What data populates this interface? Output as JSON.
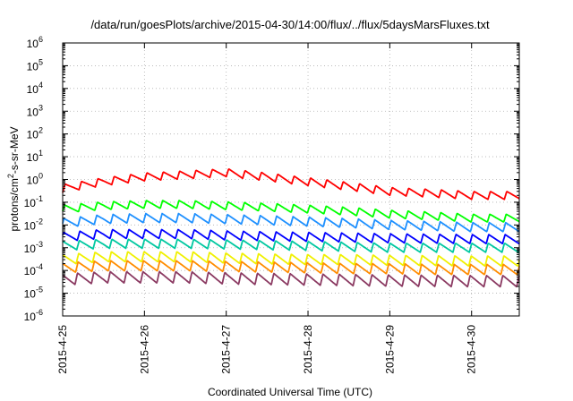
{
  "chart_data": {
    "type": "line",
    "title": "/data/run/goesPlots/archive/2015-04-30/14:00/flux/../flux/5daysMarsFluxes.txt",
    "xlabel": "Coordinated Universal Time (UTC)",
    "ylabel": "protons/cm²-s-sr-MeV",
    "ylabel_parts": {
      "base": "protons/cm",
      "sup": "2",
      "rest": "-s-sr-MeV"
    },
    "yscale": "log",
    "ylim": [
      1e-06,
      1000000.0
    ],
    "y_tick_labels": [
      {
        "value": 1e-06,
        "base": "10",
        "exp": "-6"
      },
      {
        "value": 1e-05,
        "base": "10",
        "exp": "-5"
      },
      {
        "value": 0.0001,
        "base": "10",
        "exp": "-4"
      },
      {
        "value": 0.001,
        "base": "10",
        "exp": "-3"
      },
      {
        "value": 0.01,
        "base": "10",
        "exp": "-2"
      },
      {
        "value": 0.1,
        "base": "10",
        "exp": "-1"
      },
      {
        "value": 1,
        "base": "10",
        "exp": "0"
      },
      {
        "value": 10.0,
        "base": "10",
        "exp": "1"
      },
      {
        "value": 100.0,
        "base": "10",
        "exp": "2"
      },
      {
        "value": 1000.0,
        "base": "10",
        "exp": "3"
      },
      {
        "value": 10000.0,
        "base": "10",
        "exp": "4"
      },
      {
        "value": 100000.0,
        "base": "10",
        "exp": "5"
      },
      {
        "value": 1000000.0,
        "base": "10",
        "exp": "6"
      }
    ],
    "xlim": [
      "2015-04-25T00:00",
      "2015-04-30T14:00"
    ],
    "x_ticks": [
      {
        "value": "2015-04-25T00:00",
        "label": "2015-4-25"
      },
      {
        "value": "2015-04-26T00:00",
        "label": "2015-4-26"
      },
      {
        "value": "2015-04-27T00:00",
        "label": "2015-4-27"
      },
      {
        "value": "2015-04-28T00:00",
        "label": "2015-4-28"
      },
      {
        "value": "2015-04-29T00:00",
        "label": "2015-4-29"
      },
      {
        "value": "2015-04-30T00:00",
        "label": "2015-4-30"
      }
    ],
    "grid": true,
    "series": [
      {
        "color": "#ff0000",
        "x": [
          "2015-04-25T00:00",
          "2015-04-25T12:00",
          "2015-04-26T00:00",
          "2015-04-26T12:00",
          "2015-04-27T00:00",
          "2015-04-27T12:00",
          "2015-04-28T00:00",
          "2015-04-28T12:00",
          "2015-04-29T00:00",
          "2015-04-29T12:00",
          "2015-04-30T00:00",
          "2015-04-30T14:00"
        ],
        "values": [
          0.4,
          0.8,
          1.3,
          1.6,
          2.0,
          1.3,
          0.8,
          0.5,
          0.3,
          0.25,
          0.2,
          0.2
        ],
        "oscillation_amplitude": 0.35
      },
      {
        "color": "#00ff00",
        "x": [
          "2015-04-25T00:00",
          "2015-04-25T12:00",
          "2015-04-26T00:00",
          "2015-04-26T12:00",
          "2015-04-27T00:00",
          "2015-04-27T12:00",
          "2015-04-28T00:00",
          "2015-04-28T12:00",
          "2015-04-29T00:00",
          "2015-04-29T12:00",
          "2015-04-30T00:00",
          "2015-04-30T14:00"
        ],
        "values": [
          0.05,
          0.07,
          0.08,
          0.08,
          0.07,
          0.06,
          0.05,
          0.04,
          0.03,
          0.025,
          0.02,
          0.02
        ],
        "oscillation_amplitude": 0.35
      },
      {
        "color": "#1e90ff",
        "x": [
          "2015-04-25T00:00",
          "2015-04-25T12:00",
          "2015-04-26T00:00",
          "2015-04-26T12:00",
          "2015-04-27T00:00",
          "2015-04-27T12:00",
          "2015-04-28T00:00",
          "2015-04-28T12:00",
          "2015-04-29T00:00",
          "2015-04-29T12:00",
          "2015-04-30T00:00",
          "2015-04-30T14:00"
        ],
        "values": [
          0.012,
          0.018,
          0.02,
          0.02,
          0.018,
          0.016,
          0.014,
          0.012,
          0.01,
          0.009,
          0.008,
          0.008
        ],
        "oscillation_amplitude": 0.4
      },
      {
        "color": "#0000ff",
        "x": [
          "2015-04-25T00:00",
          "2015-04-25T12:00",
          "2015-04-26T00:00",
          "2015-04-26T12:00",
          "2015-04-27T00:00",
          "2015-04-27T12:00",
          "2015-04-28T00:00",
          "2015-04-28T12:00",
          "2015-04-29T00:00",
          "2015-04-29T12:00",
          "2015-04-30T00:00",
          "2015-04-30T14:00"
        ],
        "values": [
          0.003,
          0.004,
          0.004,
          0.004,
          0.0035,
          0.0032,
          0.003,
          0.0028,
          0.0026,
          0.0025,
          0.0024,
          0.0024
        ],
        "oscillation_amplitude": 0.4
      },
      {
        "color": "#00c8a0",
        "x": [
          "2015-04-25T00:00",
          "2015-04-25T12:00",
          "2015-04-26T00:00",
          "2015-04-26T12:00",
          "2015-04-27T00:00",
          "2015-04-27T12:00",
          "2015-04-28T00:00",
          "2015-04-28T12:00",
          "2015-04-29T00:00",
          "2015-04-29T12:00",
          "2015-04-30T00:00",
          "2015-04-30T14:00"
        ],
        "values": [
          0.0012,
          0.0015,
          0.0015,
          0.0015,
          0.0014,
          0.0013,
          0.0012,
          0.0011,
          0.001,
          0.001,
          0.001,
          0.001
        ],
        "oscillation_amplitude": 0.4
      },
      {
        "color": "#f0f000",
        "x": [
          "2015-04-25T00:00",
          "2015-04-25T12:00",
          "2015-04-26T00:00",
          "2015-04-26T12:00",
          "2015-04-27T00:00",
          "2015-04-27T12:00",
          "2015-04-28T00:00",
          "2015-04-28T12:00",
          "2015-04-29T00:00",
          "2015-04-29T12:00",
          "2015-04-30T00:00",
          "2015-04-30T14:00"
        ],
        "values": [
          0.0003,
          0.0004,
          0.0004,
          0.0004,
          0.00035,
          0.00032,
          0.0003,
          0.0003,
          0.00028,
          0.00027,
          0.00026,
          0.00026
        ],
        "oscillation_amplitude": 0.45
      },
      {
        "color": "#ff8c00",
        "x": [
          "2015-04-25T00:00",
          "2015-04-25T12:00",
          "2015-04-26T00:00",
          "2015-04-26T12:00",
          "2015-04-27T00:00",
          "2015-04-27T12:00",
          "2015-04-28T00:00",
          "2015-04-28T12:00",
          "2015-04-29T00:00",
          "2015-04-29T12:00",
          "2015-04-30T00:00",
          "2015-04-30T14:00"
        ],
        "values": [
          0.00013,
          0.00016,
          0.00016,
          0.00016,
          0.00015,
          0.00014,
          0.00013,
          0.00012,
          0.00012,
          0.00011,
          0.00011,
          0.00011
        ],
        "oscillation_amplitude": 0.45
      },
      {
        "color": "#8b3a62",
        "x": [
          "2015-04-25T00:00",
          "2015-04-25T12:00",
          "2015-04-26T00:00",
          "2015-04-26T12:00",
          "2015-04-27T00:00",
          "2015-04-27T12:00",
          "2015-04-28T00:00",
          "2015-04-28T12:00",
          "2015-04-29T00:00",
          "2015-04-29T12:00",
          "2015-04-30T00:00",
          "2015-04-30T14:00"
        ],
        "values": [
          4e-05,
          5e-05,
          5e-05,
          5e-05,
          4.5e-05,
          4.2e-05,
          4e-05,
          3.8e-05,
          3.6e-05,
          3.5e-05,
          3.4e-05,
          3.4e-05
        ],
        "oscillation_amplitude": 0.5
      }
    ]
  }
}
